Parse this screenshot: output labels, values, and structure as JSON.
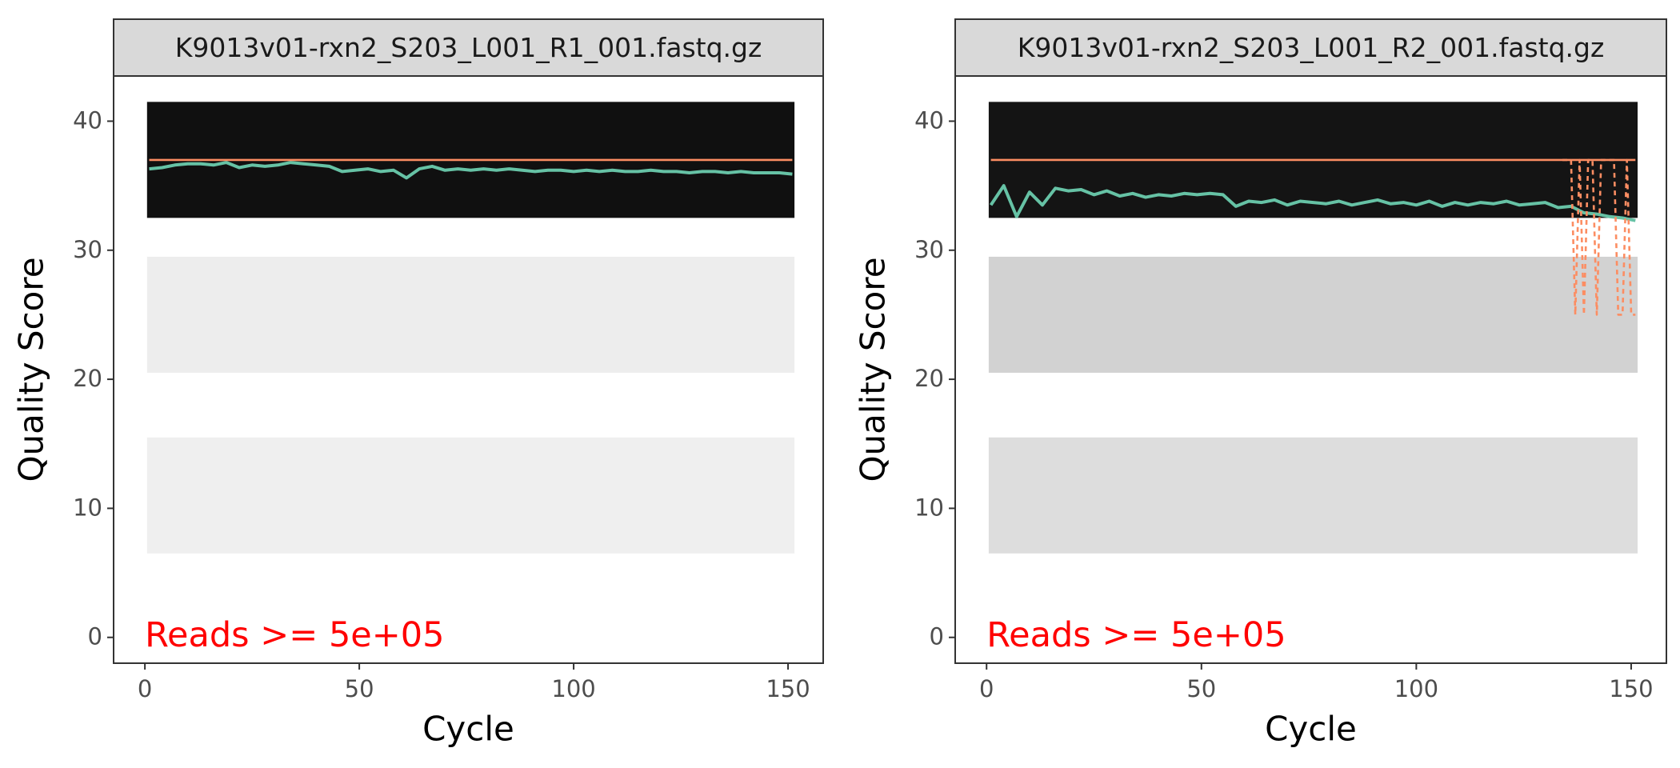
{
  "chart_data": [
    {
      "type": "line",
      "title": "K9013v01-rxn2_S203_L001_R1_001.fastq.gz",
      "xlabel": "Cycle",
      "ylabel": "Quality Score",
      "annotation": "Reads >=  5e+05",
      "annotation_color": "#ff0000",
      "xlim": [
        -7.3,
        158.2
      ],
      "ylim": [
        -2,
        43.5
      ],
      "xticks": [
        0,
        50,
        100,
        150
      ],
      "yticks": [
        0,
        10,
        20,
        30,
        40
      ],
      "tiles": [
        {
          "score": 37,
          "color": "#101010"
        },
        {
          "score": 25,
          "color": "#ededed"
        },
        {
          "score": 11,
          "color": "#efefef"
        }
      ],
      "tile_cycles": [
        1,
        151
      ],
      "series": [
        {
          "color": "#66C2A5",
          "x": [
            1,
            4,
            7,
            10,
            13,
            16,
            19,
            22,
            25,
            28,
            31,
            34,
            37,
            40,
            43,
            46,
            49,
            52,
            55,
            58,
            61,
            64,
            67,
            70,
            73,
            76,
            79,
            82,
            85,
            88,
            91,
            94,
            97,
            100,
            103,
            106,
            109,
            112,
            115,
            118,
            121,
            124,
            127,
            130,
            133,
            136,
            139,
            142,
            145,
            148,
            151
          ],
          "values": [
            36.3,
            36.4,
            36.6,
            36.7,
            36.7,
            36.6,
            36.8,
            36.4,
            36.6,
            36.5,
            36.6,
            36.8,
            36.7,
            36.6,
            36.5,
            36.1,
            36.2,
            36.3,
            36.1,
            36.2,
            35.6,
            36.3,
            36.5,
            36.2,
            36.3,
            36.2,
            36.3,
            36.2,
            36.3,
            36.2,
            36.1,
            36.2,
            36.2,
            36.1,
            36.2,
            36.1,
            36.2,
            36.1,
            36.1,
            36.2,
            36.1,
            36.1,
            36.0,
            36.1,
            36.1,
            36.0,
            36.1,
            36.0,
            36.0,
            36.0,
            35.9
          ]
        },
        {
          "color": "#FC8D62",
          "x": [
            1,
            151
          ],
          "values": [
            37,
            37
          ]
        }
      ]
    },
    {
      "type": "line",
      "title": "K9013v01-rxn2_S203_L001_R2_001.fastq.gz",
      "xlabel": "Cycle",
      "ylabel": "Quality Score",
      "annotation": "Reads >=  5e+05",
      "annotation_color": "#ff0000",
      "xlim": [
        -7.3,
        158.2
      ],
      "ylim": [
        -2,
        43.5
      ],
      "xticks": [
        0,
        50,
        100,
        150
      ],
      "yticks": [
        0,
        10,
        20,
        30,
        40
      ],
      "tiles": [
        {
          "score": 37,
          "color": "#141414"
        },
        {
          "score": 25,
          "color": "#d2d2d2"
        },
        {
          "score": 11,
          "color": "#dddddd"
        }
      ],
      "tile_cycles": [
        1,
        151
      ],
      "series": [
        {
          "color": "#66C2A5",
          "x": [
            1,
            4,
            7,
            10,
            13,
            16,
            19,
            22,
            25,
            28,
            31,
            34,
            37,
            40,
            43,
            46,
            49,
            52,
            55,
            58,
            61,
            64,
            67,
            70,
            73,
            76,
            79,
            82,
            85,
            88,
            91,
            94,
            97,
            100,
            103,
            106,
            109,
            112,
            115,
            118,
            121,
            124,
            127,
            130,
            133,
            136,
            139,
            142,
            145,
            148,
            151
          ],
          "values": [
            33.5,
            35.0,
            32.6,
            34.5,
            33.5,
            34.8,
            34.6,
            34.7,
            34.3,
            34.6,
            34.2,
            34.4,
            34.1,
            34.3,
            34.2,
            34.4,
            34.3,
            34.4,
            34.3,
            33.4,
            33.8,
            33.7,
            33.9,
            33.5,
            33.8,
            33.7,
            33.6,
            33.8,
            33.5,
            33.7,
            33.9,
            33.6,
            33.7,
            33.5,
            33.8,
            33.4,
            33.7,
            33.5,
            33.7,
            33.6,
            33.8,
            33.5,
            33.6,
            33.7,
            33.3,
            33.4,
            32.9,
            32.8,
            32.6,
            32.5,
            32.3
          ]
        },
        {
          "color": "#FC8D62",
          "x": [
            1,
            151
          ],
          "values": [
            37,
            37
          ]
        },
        {
          "color": "#FC8D62",
          "dashed": true,
          "x": [
            134,
            135,
            136,
            137,
            138,
            139,
            140,
            141,
            142,
            143,
            144,
            145,
            146,
            147,
            148,
            149,
            150,
            151
          ],
          "values": [
            37,
            37,
            37,
            25,
            37,
            25,
            37,
            37,
            25,
            37,
            37,
            37,
            37,
            25,
            25,
            37,
            25,
            25
          ]
        }
      ]
    }
  ]
}
